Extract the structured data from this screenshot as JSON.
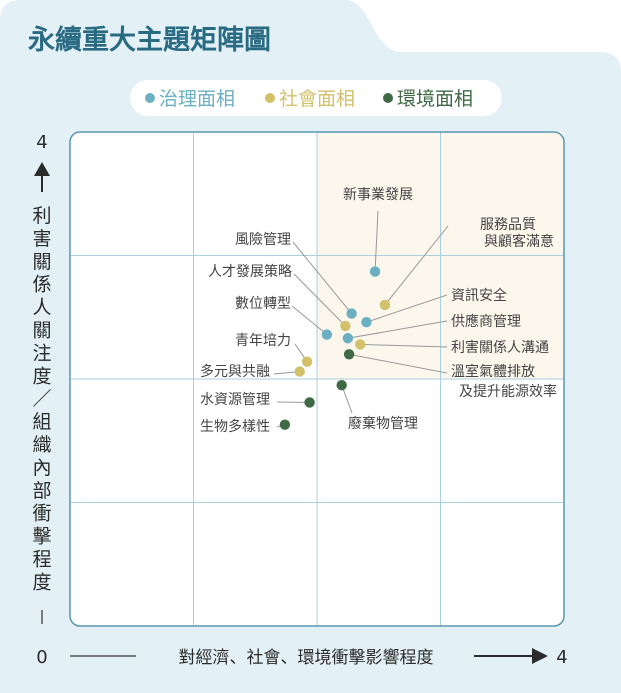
{
  "title": "永續重大主題矩陣圖",
  "colors": {
    "governance": "#6aafc2",
    "social": "#d3c06a",
    "environment": "#3f6a45",
    "panel_bg": "#e3f0f6",
    "title": "#2a6b84",
    "plot_border": "#5b97b2",
    "grid": "#a9cfe0",
    "highlight": "#fbf7ec",
    "text": "#444444",
    "leader": "#999999"
  },
  "legend": [
    {
      "name": "治理面相",
      "key": "governance"
    },
    {
      "name": "社會面相",
      "key": "social"
    },
    {
      "name": "環境面相",
      "key": "environment"
    }
  ],
  "chart_data": {
    "type": "scatter",
    "title": "永續重大主題矩陣圖",
    "xlabel": "對經濟、社會、環境衝擊影響程度",
    "ylabel": "利害關係人關注度／組織內部衝擊程度",
    "xlim": [
      0,
      4
    ],
    "ylim": [
      0,
      4
    ],
    "x_ticks": [
      "0",
      "4"
    ],
    "y_ticks": [
      "0",
      "4"
    ],
    "grid": true,
    "highlight_region": {
      "x": [
        2,
        4
      ],
      "y": [
        2,
        4
      ]
    },
    "legend_position": "top-center",
    "points": [
      {
        "label": "新事業發展",
        "category": "governance",
        "x": 2.47,
        "y": 2.87
      },
      {
        "label": "服務品質與顧客滿意",
        "category": "social",
        "x": 2.55,
        "y": 2.6
      },
      {
        "label": "風險管理",
        "category": "governance",
        "x": 2.28,
        "y": 2.53
      },
      {
        "label": "資訊安全",
        "category": "governance",
        "x": 2.4,
        "y": 2.46
      },
      {
        "label": "人才發展策略",
        "category": "social",
        "x": 2.23,
        "y": 2.43
      },
      {
        "label": "數位轉型",
        "category": "governance",
        "x": 2.08,
        "y": 2.36
      },
      {
        "label": "供應商管理",
        "category": "governance",
        "x": 2.25,
        "y": 2.33
      },
      {
        "label": "利害關係人溝通",
        "category": "social",
        "x": 2.35,
        "y": 2.28
      },
      {
        "label": "溫室氣體排放及提升能源效率",
        "category": "environment",
        "x": 2.26,
        "y": 2.2
      },
      {
        "label": "青年培力",
        "category": "social",
        "x": 1.92,
        "y": 2.14
      },
      {
        "label": "多元與共融",
        "category": "social",
        "x": 1.86,
        "y": 2.06
      },
      {
        "label": "廢棄物管理",
        "category": "environment",
        "x": 2.2,
        "y": 1.95
      },
      {
        "label": "水資源管理",
        "category": "environment",
        "x": 1.94,
        "y": 1.81
      },
      {
        "label": "生物多樣性",
        "category": "environment",
        "x": 1.74,
        "y": 1.63
      }
    ]
  }
}
